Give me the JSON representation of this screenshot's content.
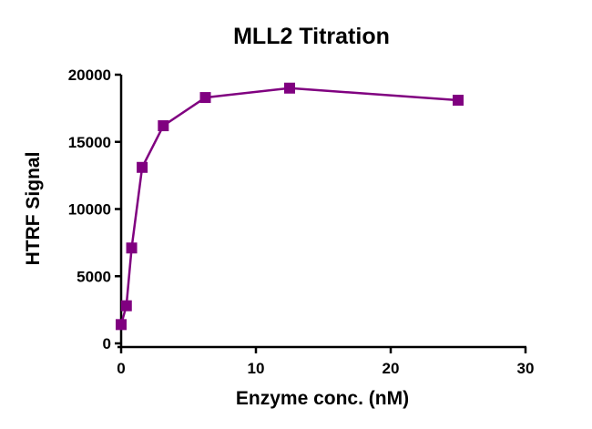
{
  "chart_data": {
    "type": "line",
    "title": "MLL2 Titration",
    "xlabel": "Enzyme conc. (nM)",
    "ylabel": "HTRF Signal",
    "xlim": [
      0,
      30
    ],
    "ylim": [
      0,
      20000
    ],
    "xticks": [
      0,
      10,
      20,
      30
    ],
    "yticks": [
      0,
      5000,
      10000,
      15000,
      20000
    ],
    "grid": false,
    "marker": "square",
    "color": "#800080",
    "series": [
      {
        "x": [
          0,
          0.39,
          0.78,
          1.56,
          3.13,
          6.25,
          12.5,
          25
        ],
        "y": [
          1400,
          2800,
          7100,
          13100,
          16200,
          18300,
          19000,
          18100
        ]
      }
    ]
  }
}
